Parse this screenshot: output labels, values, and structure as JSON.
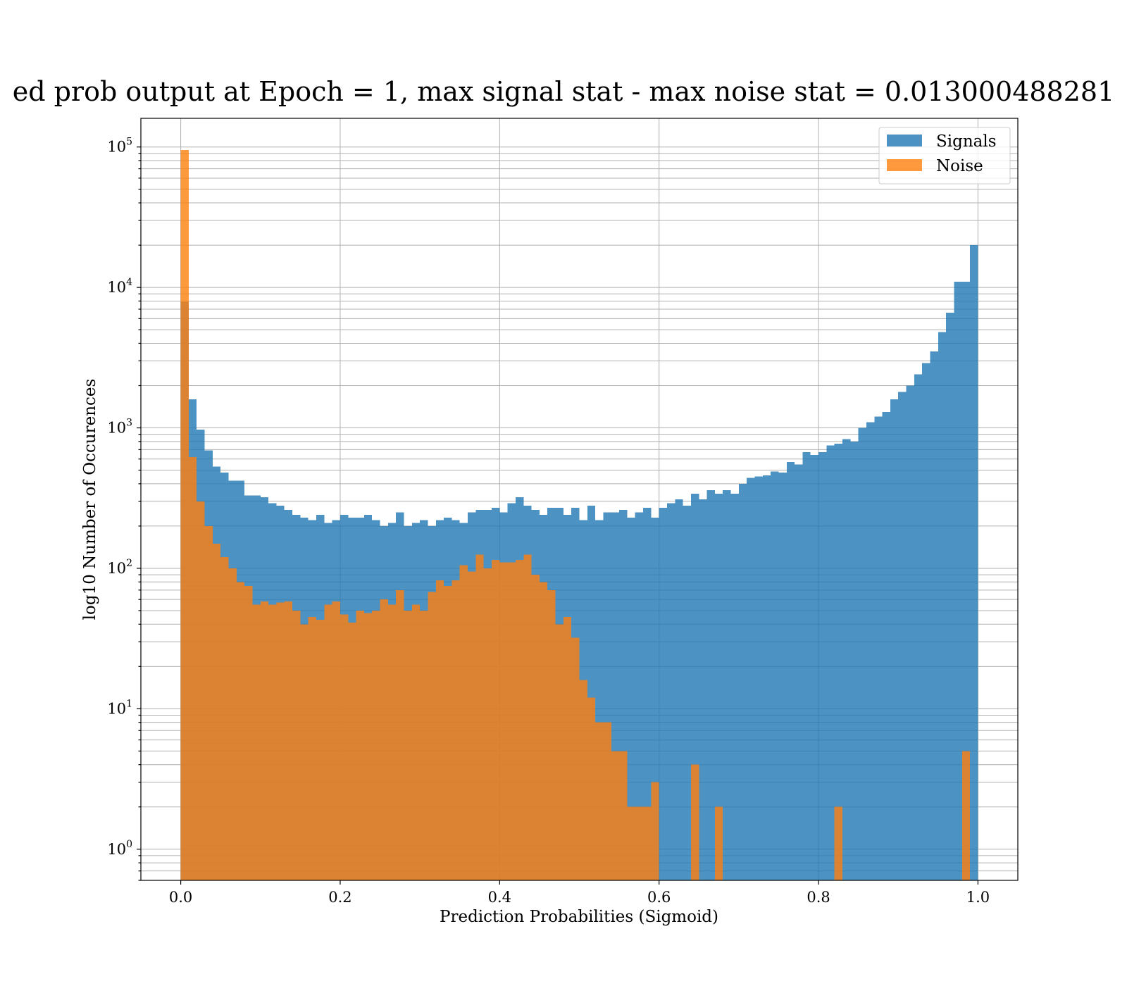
{
  "chart_data": {
    "type": "bar",
    "subtype": "histogram",
    "title": "ed prob output at Epoch = 1, max signal stat - max noise stat = 0.013000488281",
    "xlabel": "Prediction Probabilities (Sigmoid)",
    "ylabel": "log10 Number of Occurences",
    "xlim": [
      -0.05,
      1.05
    ],
    "ylim": [
      0.6,
      160000
    ],
    "yscale": "log",
    "grid": true,
    "minor_grid": true,
    "legend_position": "top-right",
    "x_ticks": [
      "0.0",
      "0.2",
      "0.4",
      "0.6",
      "0.8",
      "1.0"
    ],
    "y_ticks": [
      {
        "base": "10",
        "exp": "0"
      },
      {
        "base": "10",
        "exp": "1"
      },
      {
        "base": "10",
        "exp": "2"
      },
      {
        "base": "10",
        "exp": "3"
      },
      {
        "base": "10",
        "exp": "4"
      },
      {
        "base": "10",
        "exp": "5"
      }
    ],
    "bins": 100,
    "bin_range": [
      0,
      1
    ],
    "series": [
      {
        "name": "Signals",
        "color": "#1f77b4",
        "opacity": 0.8,
        "values": [
          7900,
          1600,
          970,
          690,
          530,
          480,
          420,
          420,
          330,
          330,
          320,
          290,
          280,
          260,
          240,
          230,
          220,
          240,
          210,
          220,
          240,
          230,
          230,
          240,
          220,
          200,
          210,
          250,
          200,
          210,
          220,
          200,
          220,
          230,
          220,
          210,
          250,
          260,
          260,
          270,
          250,
          290,
          320,
          280,
          260,
          240,
          270,
          270,
          240,
          270,
          220,
          280,
          220,
          250,
          250,
          260,
          230,
          250,
          270,
          230,
          270,
          290,
          310,
          280,
          340,
          310,
          360,
          340,
          360,
          340,
          400,
          440,
          450,
          460,
          490,
          480,
          570,
          550,
          670,
          640,
          670,
          750,
          770,
          830,
          800,
          1000,
          1100,
          1200,
          1300,
          1600,
          1800,
          2000,
          2400,
          2900,
          3500,
          4800,
          6600,
          11000,
          11000,
          20000
        ]
      },
      {
        "name": "Noise",
        "color": "#ff7f0e",
        "opacity": 0.8,
        "values": [
          95000,
          620,
          300,
          200,
          150,
          120,
          100,
          80,
          75,
          55,
          58,
          55,
          57,
          58,
          50,
          40,
          45,
          43,
          55,
          58,
          47,
          41,
          50,
          48,
          50,
          60,
          55,
          70,
          50,
          55,
          50,
          68,
          82,
          75,
          82,
          105,
          95,
          125,
          100,
          115,
          110,
          110,
          115,
          125,
          90,
          80,
          70,
          40,
          45,
          32,
          16,
          12,
          8,
          8,
          5,
          5,
          2,
          2,
          2,
          3,
          0,
          0,
          0.5,
          0.5,
          4,
          0.5,
          0.5,
          2,
          0,
          0.5,
          0,
          0,
          0,
          0.5,
          0.5,
          0,
          0.5,
          0,
          0.5,
          0,
          0,
          0,
          2,
          0,
          0.5,
          0,
          0,
          0.5,
          0,
          0.5,
          0.5,
          0,
          0,
          0,
          0.5,
          0.5,
          0.5,
          0.5,
          5,
          0
        ]
      }
    ]
  }
}
